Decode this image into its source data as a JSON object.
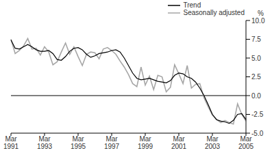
{
  "chart_data": {
    "type": "line",
    "y_label": "%",
    "legend": "top-right",
    "grid": false,
    "categories": [
      "Mar 1991",
      null,
      null,
      null,
      null,
      null,
      null,
      null,
      "Mar 1993",
      null,
      null,
      null,
      null,
      null,
      null,
      null,
      "Mar 1995",
      null,
      null,
      null,
      null,
      null,
      null,
      null,
      "Mar 1997",
      null,
      null,
      null,
      null,
      null,
      null,
      null,
      "Mar 1999",
      null,
      null,
      null,
      null,
      null,
      null,
      null,
      "Mar 2001",
      null,
      null,
      null,
      null,
      null,
      null,
      null,
      "Mar 2003",
      null,
      null,
      null,
      null,
      null,
      null,
      null,
      "Mar 2005"
    ],
    "series": [
      {
        "name": "Trend",
        "color": "#000000",
        "line_style": "solid",
        "values": [
          7.4,
          6.3,
          6.2,
          6.5,
          6.8,
          6.5,
          6.1,
          5.9,
          5.9,
          6.0,
          5.6,
          4.8,
          4.7,
          5.2,
          5.9,
          6.3,
          6.4,
          6.1,
          5.5,
          5.1,
          5.3,
          5.6,
          5.7,
          5.8,
          6.0,
          6.1,
          5.8,
          5.0,
          4.0,
          3.0,
          2.3,
          2.1,
          2.2,
          2.3,
          2.1,
          1.9,
          1.8,
          1.7,
          2.0,
          2.7,
          3.0,
          2.9,
          2.5,
          2.3,
          1.8,
          1.0,
          0.0,
          -1.2,
          -2.5,
          -3.2,
          -3.4,
          -3.5,
          -3.7,
          -3.3,
          -2.5,
          -2.4,
          -3.2
        ]
      },
      {
        "name": "Seasonally adjusted",
        "color": "#a6a6a6",
        "line_style": "solid",
        "values": [
          7.5,
          5.6,
          6.0,
          6.6,
          7.6,
          6.2,
          6.3,
          5.4,
          6.5,
          5.8,
          4.1,
          4.5,
          5.8,
          7.0,
          5.5,
          6.5,
          5.2,
          4.0,
          5.5,
          5.8,
          5.7,
          4.9,
          6.2,
          6.4,
          6.0,
          5.5,
          4.6,
          3.8,
          2.8,
          1.6,
          1.2,
          3.8,
          1.4,
          2.6,
          0.8,
          2.7,
          2.5,
          0.5,
          1.1,
          4.1,
          2.9,
          1.6,
          4.0,
          1.0,
          1.5,
          1.6,
          -0.3,
          -1.5,
          -2.6,
          -3.2,
          -3.6,
          -3.3,
          -3.6,
          -3.8,
          -1.1,
          -2.5,
          -3.4
        ]
      }
    ],
    "ylim": [
      -5,
      10
    ],
    "yticks": [
      {
        "value": -5,
        "label": "-5.0"
      },
      {
        "value": -2.5,
        "label": "-2.5"
      },
      {
        "value": 0,
        "label": "0.0"
      },
      {
        "value": 2.5,
        "label": "2.5"
      },
      {
        "value": 5,
        "label": "5.0"
      },
      {
        "value": 7.5,
        "label": "7.5"
      },
      {
        "value": 10,
        "label": "10.0"
      }
    ]
  }
}
